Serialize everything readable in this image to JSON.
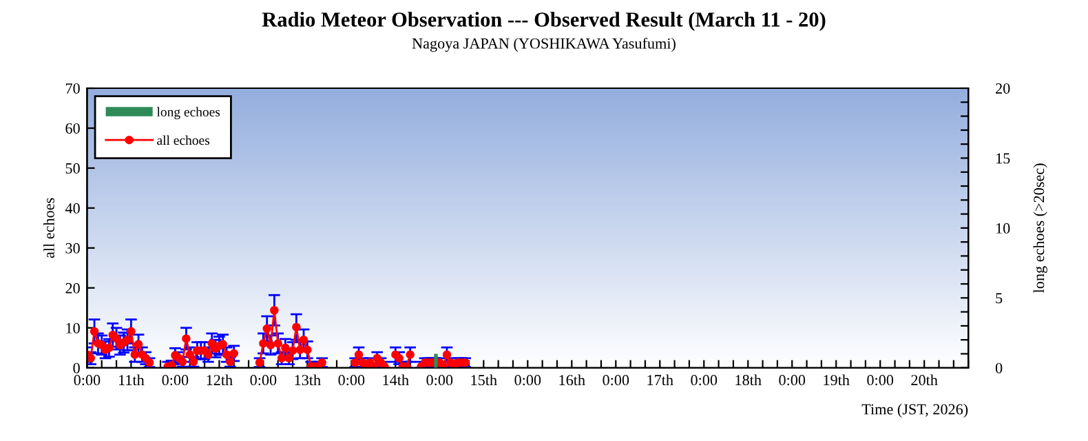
{
  "chart_data": {
    "type": "line",
    "title": "Radio Meteor Observation --- Observed Result (March 11 - 20)",
    "subtitle": "Nagoya JAPAN (YOSHIKAWA Yasufumi)",
    "xlabel": "Time (JST, 2026)",
    "ylabel": "all echoes",
    "y2label": "long echoes (>20sec)",
    "series": [
      {
        "name": "long echoes",
        "type": "bar",
        "axis": "y2",
        "color": "#2e8b57",
        "x": [
          "2026-03-14T23:00"
        ],
        "values": [
          1
        ]
      },
      {
        "name": "all echoes",
        "color": "#ff0000",
        "x": [
          "2026-03-11T00:00",
          "2026-03-11T01:00",
          "2026-03-11T02:00",
          "2026-03-11T03:00",
          "2026-03-11T04:00",
          "2026-03-11T05:00",
          "2026-03-11T06:00",
          "2026-03-11T07:00",
          "2026-03-11T08:00",
          "2026-03-11T09:00",
          "2026-03-11T10:00",
          "2026-03-11T11:00",
          "2026-03-11T12:00",
          "2026-03-11T13:00",
          "2026-03-11T14:00",
          "2026-03-11T15:00",
          "2026-03-11T16:00",
          "2026-03-11T17:00",
          "2026-03-11T19:30",
          "2026-03-11T22:00",
          "2026-03-11T23:00",
          "2026-03-12T00:00",
          "2026-03-12T01:00",
          "2026-03-12T02:00",
          "2026-03-12T03:00",
          "2026-03-12T04:00",
          "2026-03-12T05:00",
          "2026-03-12T06:00",
          "2026-03-12T07:00",
          "2026-03-12T08:00",
          "2026-03-12T09:00",
          "2026-03-12T10:00",
          "2026-03-12T11:00",
          "2026-03-12T12:00",
          "2026-03-12T13:00",
          "2026-03-12T14:00",
          "2026-03-12T15:00",
          "2026-03-12T16:00",
          "2026-03-12T20:00",
          "2026-03-12T23:00",
          "2026-03-13T00:00",
          "2026-03-13T01:00",
          "2026-03-13T02:00",
          "2026-03-13T03:00",
          "2026-03-13T04:00",
          "2026-03-13T05:00",
          "2026-03-13T06:00",
          "2026-03-13T07:00",
          "2026-03-13T08:00",
          "2026-03-13T09:00",
          "2026-03-13T10:00",
          "2026-03-13T11:00",
          "2026-03-13T12:00",
          "2026-03-13T13:00",
          "2026-03-13T14:00",
          "2026-03-13T15:00",
          "2026-03-13T16:00",
          "2026-03-13T21:00",
          "2026-03-14T01:00",
          "2026-03-14T02:00",
          "2026-03-14T03:00",
          "2026-03-14T04:00",
          "2026-03-14T05:00",
          "2026-03-14T06:00",
          "2026-03-14T07:00",
          "2026-03-14T08:00",
          "2026-03-14T09:00",
          "2026-03-14T10:30",
          "2026-03-14T12:00",
          "2026-03-14T13:00",
          "2026-03-14T14:00",
          "2026-03-14T15:00",
          "2026-03-14T16:00",
          "2026-03-14T18:30",
          "2026-03-14T19:00",
          "2026-03-14T20:00",
          "2026-03-14T21:00",
          "2026-03-14T22:00",
          "2026-03-14T23:00",
          "2026-03-15T00:00",
          "2026-03-15T01:00",
          "2026-03-15T02:00",
          "2026-03-15T03:00",
          "2026-03-15T04:00",
          "2026-03-15T05:00",
          "2026-03-15T06:00",
          "2026-03-15T07:00"
        ],
        "values": [
          3.3,
          2.4,
          9.1,
          6.1,
          5.7,
          4.5,
          5.0,
          8.2,
          7.3,
          5.7,
          6.3,
          7.0,
          9.1,
          3.3,
          5.9,
          3.3,
          2.4,
          1.3,
          null,
          0.3,
          0.6,
          3.1,
          2.4,
          1.5,
          7.3,
          3.3,
          1.5,
          4.3,
          4.3,
          4.3,
          3.3,
          6.1,
          4.8,
          5.5,
          5.9,
          3.3,
          1.5,
          3.6,
          null,
          1.3,
          6.1,
          9.8,
          5.7,
          14.4,
          6.1,
          2.4,
          5.0,
          2.4,
          4.3,
          10.2,
          4.5,
          7.0,
          4.5,
          0.3,
          0.3,
          0.3,
          1.3,
          null,
          1.3,
          3.3,
          1.3,
          0.3,
          1.3,
          0.3,
          2.4,
          1.3,
          0.3,
          null,
          3.3,
          2.4,
          0.3,
          0.3,
          3.3,
          null,
          0.3,
          1.3,
          1.3,
          1.3,
          1.3,
          1.3,
          0.3,
          3.3,
          1.3,
          0.3,
          1.3,
          1.3,
          1.3
        ],
        "errors": [
          1.8,
          1.5,
          3,
          2.5,
          2.4,
          2.1,
          2.2,
          2.9,
          2.7,
          2.4,
          2.5,
          2.6,
          3,
          1.8,
          2.4,
          1.8,
          1.5,
          1.1,
          null,
          [
            0,
            1.5
          ],
          [
            0,
            1.8
          ],
          1.8,
          1.5,
          1.2,
          2.7,
          1.8,
          1.2,
          2.1,
          2.1,
          2.1,
          1.8,
          2.5,
          2.2,
          2.3,
          2.4,
          1.8,
          1.2,
          1.9,
          null,
          1.1,
          2.5,
          3.1,
          2.4,
          3.8,
          2.5,
          1.5,
          2.2,
          1.5,
          2.1,
          3.2,
          2.1,
          2.6,
          2.1,
          [
            0,
            1.5
          ],
          [
            0,
            1.5
          ],
          [
            0,
            1.5
          ],
          1.1,
          null,
          1.1,
          1.8,
          1.1,
          null,
          1.1,
          null,
          1.5,
          1.1,
          [
            0,
            1.5
          ],
          null,
          1.8,
          1.5,
          [
            0,
            1.5
          ],
          [
            0,
            1.5
          ],
          1.8,
          null,
          [
            0,
            1.5
          ],
          1.1,
          1.1,
          1.1,
          1.1,
          1.1,
          [
            0,
            1.5
          ],
          1.8,
          1.1,
          null,
          1.1,
          1.1,
          1.1
        ]
      }
    ],
    "marker": "circle",
    "line_style": "solid",
    "legend": "top left",
    "xlim": [
      "2026-03-11T00:00",
      "2026-03-21T00:00"
    ],
    "xticks": [
      {
        "value": "2026-03-11T00:00",
        "label": "0:00"
      },
      {
        "value": "2026-03-11T04:00",
        "label": null
      },
      {
        "value": "2026-03-11T08:00",
        "label": null
      },
      {
        "value": "2026-03-11T12:00",
        "label": "11th"
      },
      {
        "value": "2026-03-11T16:00",
        "label": null
      },
      {
        "value": "2026-03-11T20:00",
        "label": null
      },
      {
        "value": "2026-03-12T00:00",
        "label": "0:00"
      },
      {
        "value": "2026-03-12T04:00",
        "label": null
      },
      {
        "value": "2026-03-12T08:00",
        "label": null
      },
      {
        "value": "2026-03-12T12:00",
        "label": "12th"
      },
      {
        "value": "2026-03-12T16:00",
        "label": null
      },
      {
        "value": "2026-03-12T20:00",
        "label": null
      },
      {
        "value": "2026-03-13T00:00",
        "label": "0:00"
      },
      {
        "value": "2026-03-13T04:00",
        "label": null
      },
      {
        "value": "2026-03-13T08:00",
        "label": null
      },
      {
        "value": "2026-03-13T12:00",
        "label": "13th"
      },
      {
        "value": "2026-03-13T16:00",
        "label": null
      },
      {
        "value": "2026-03-13T20:00",
        "label": null
      },
      {
        "value": "2026-03-14T00:00",
        "label": "0:00"
      },
      {
        "value": "2026-03-14T04:00",
        "label": null
      },
      {
        "value": "2026-03-14T08:00",
        "label": null
      },
      {
        "value": "2026-03-14T12:00",
        "label": "14th"
      },
      {
        "value": "2026-03-14T16:00",
        "label": null
      },
      {
        "value": "2026-03-14T20:00",
        "label": null
      },
      {
        "value": "2026-03-15T00:00",
        "label": "0:00"
      },
      {
        "value": "2026-03-15T04:00",
        "label": null
      },
      {
        "value": "2026-03-15T08:00",
        "label": null
      },
      {
        "value": "2026-03-15T12:00",
        "label": "15th"
      },
      {
        "value": "2026-03-15T16:00",
        "label": null
      },
      {
        "value": "2026-03-15T20:00",
        "label": null
      },
      {
        "value": "2026-03-16T00:00",
        "label": "0:00"
      },
      {
        "value": "2026-03-16T04:00",
        "label": null
      },
      {
        "value": "2026-03-16T08:00",
        "label": null
      },
      {
        "value": "2026-03-16T12:00",
        "label": "16th"
      },
      {
        "value": "2026-03-16T16:00",
        "label": null
      },
      {
        "value": "2026-03-16T20:00",
        "label": null
      },
      {
        "value": "2026-03-17T00:00",
        "label": "0:00"
      },
      {
        "value": "2026-03-17T04:00",
        "label": null
      },
      {
        "value": "2026-03-17T08:00",
        "label": null
      },
      {
        "value": "2026-03-17T12:00",
        "label": "17th"
      },
      {
        "value": "2026-03-17T16:00",
        "label": null
      },
      {
        "value": "2026-03-17T20:00",
        "label": null
      },
      {
        "value": "2026-03-18T00:00",
        "label": "0:00"
      },
      {
        "value": "2026-03-18T04:00",
        "label": null
      },
      {
        "value": "2026-03-18T08:00",
        "label": null
      },
      {
        "value": "2026-03-18T12:00",
        "label": "18th"
      },
      {
        "value": "2026-03-18T16:00",
        "label": null
      },
      {
        "value": "2026-03-18T20:00",
        "label": null
      },
      {
        "value": "2026-03-19T00:00",
        "label": "0:00"
      },
      {
        "value": "2026-03-19T04:00",
        "label": null
      },
      {
        "value": "2026-03-19T08:00",
        "label": null
      },
      {
        "value": "2026-03-19T12:00",
        "label": "19th"
      },
      {
        "value": "2026-03-19T16:00",
        "label": null
      },
      {
        "value": "2026-03-19T20:00",
        "label": null
      },
      {
        "value": "2026-03-20T00:00",
        "label": "0:00"
      },
      {
        "value": "2026-03-20T04:00",
        "label": null
      },
      {
        "value": "2026-03-20T08:00",
        "label": null
      },
      {
        "value": "2026-03-20T12:00",
        "label": "20th"
      },
      {
        "value": "2026-03-20T16:00",
        "label": null
      },
      {
        "value": "2026-03-20T20:00",
        "label": null
      },
      {
        "value": "2026-03-21T00:00",
        "label": null
      }
    ],
    "ylim": [
      0,
      70
    ],
    "yticks": [
      0,
      10,
      20,
      30,
      40,
      50,
      60,
      70
    ],
    "y2lim": [
      0,
      20
    ],
    "y2ticks": [
      0,
      {
        "value": 1,
        "label": null
      },
      {
        "value": 2,
        "label": null
      },
      {
        "value": 3,
        "label": null
      },
      {
        "value": 4,
        "label": null
      },
      5,
      {
        "value": 6,
        "label": null
      },
      {
        "value": 7,
        "label": null
      },
      {
        "value": 8,
        "label": null
      },
      {
        "value": 9,
        "label": null
      },
      10,
      {
        "value": 11,
        "label": null
      },
      {
        "value": 12,
        "label": null
      },
      {
        "value": 13,
        "label": null
      },
      {
        "value": 14,
        "label": null
      },
      15,
      {
        "value": 16,
        "label": null
      },
      {
        "value": 17,
        "label": null
      },
      {
        "value": 18,
        "label": null
      },
      {
        "value": 19,
        "label": null
      },
      20
    ]
  }
}
